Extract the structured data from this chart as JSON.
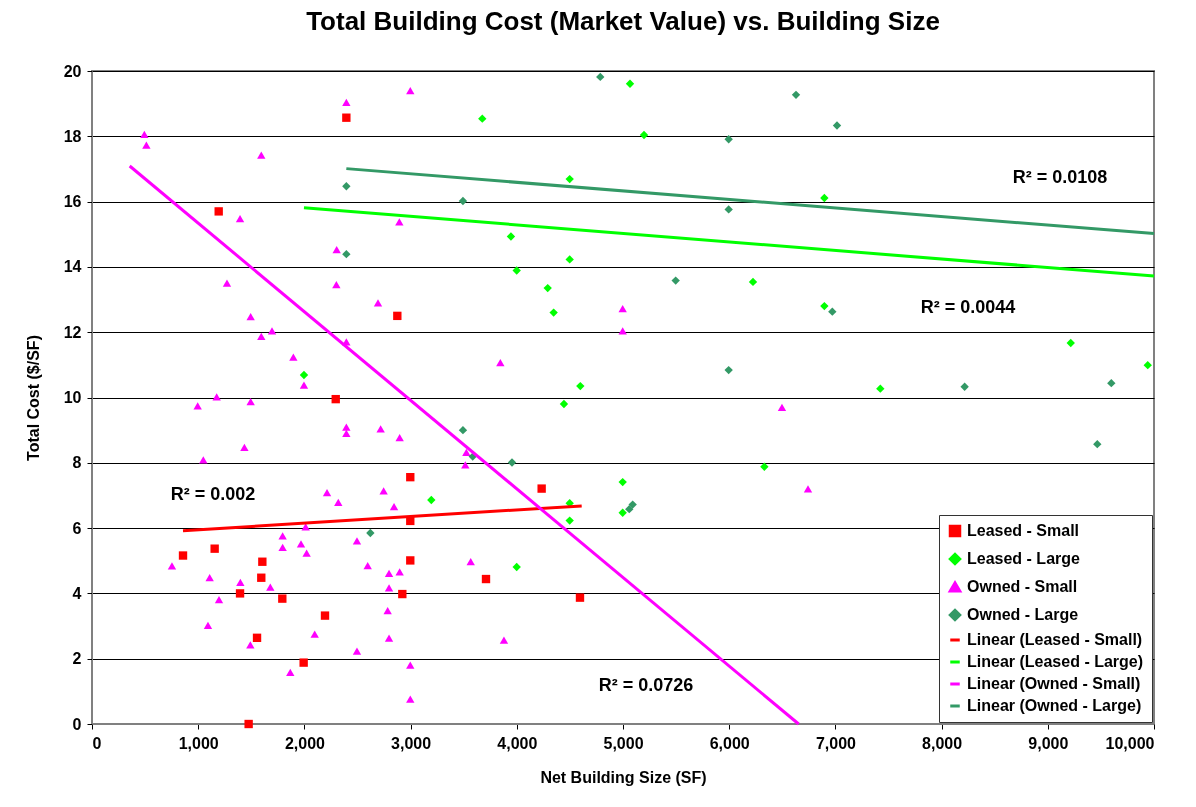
{
  "chart_data": {
    "type": "scatter",
    "title": "Total Building Cost (Market Value) vs. Building Size",
    "xlabel": "Net Building Size (SF)",
    "ylabel": "Total Cost ($/SF)",
    "xlim": [
      0,
      10000
    ],
    "ylim": [
      0,
      20
    ],
    "xticks": [
      0,
      {
        "value": 1000,
        "label": "1,000"
      },
      {
        "value": 2000,
        "label": "2,000"
      },
      {
        "value": 3000,
        "label": "3,000"
      },
      {
        "value": 4000,
        "label": "4,000"
      },
      {
        "value": 5000,
        "label": "5,000"
      },
      {
        "value": 6000,
        "label": "6,000"
      },
      {
        "value": 7000,
        "label": "7,000"
      },
      {
        "value": 8000,
        "label": "8,000"
      },
      {
        "value": 9000,
        "label": "9,000"
      },
      {
        "value": 10000,
        "label": "10,000"
      }
    ],
    "yticks": [
      0,
      2,
      4,
      6,
      8,
      10,
      12,
      14,
      16,
      18,
      20
    ],
    "grid": "y",
    "legend": "bottom right",
    "series": [
      {
        "name": "Leased - Small",
        "marker": "square",
        "color": "#ff0000",
        "x": [
          2395,
          1193,
          2875,
          2295,
          2997,
          4234,
          2997,
          857,
          1155,
          1604,
          2997,
          1594,
          1394,
          1792,
          2922,
          2194,
          1554,
          1993,
          1475,
          3710,
          4595
        ],
        "values": [
          18.57,
          15.7,
          12.5,
          9.95,
          7.56,
          7.21,
          6.22,
          5.16,
          5.37,
          4.97,
          5.01,
          4.48,
          4.0,
          3.84,
          3.98,
          3.32,
          2.64,
          1.88,
          0.0,
          4.44,
          3.87
        ]
      },
      {
        "name": "Leased - Large",
        "marker": "diamond",
        "color": "#00ff00",
        "x": [
          5066,
          3675,
          5198,
          4498,
          3945,
          4498,
          3999,
          4291,
          6224,
          4347,
          4598,
          1996,
          3195,
          4444,
          4997,
          4498,
          4997,
          4498,
          3999,
          6331,
          6896,
          6896,
          9216,
          9941,
          7423
        ],
        "values": [
          19.61,
          18.54,
          18.04,
          16.69,
          14.93,
          14.23,
          13.89,
          13.35,
          13.54,
          12.6,
          10.35,
          10.69,
          6.86,
          9.8,
          7.41,
          6.76,
          6.47,
          6.23,
          4.81,
          7.88,
          16.11,
          12.8,
          11.67,
          10.99,
          10.27
        ]
      },
      {
        "name": "Owned - Small",
        "marker": "triangle",
        "color": "#ff00ff",
        "x": [
          2997,
          2395,
          493,
          512,
          1594,
          1394,
          2894,
          2304,
          1271,
          2301,
          2693,
          1494,
          1695,
          1594,
          2395,
          1896,
          1996,
          1174,
          995,
          1494,
          2395,
          2395,
          2718,
          2897,
          1435,
          1048,
          2213,
          2319,
          2746,
          2844,
          2012,
          1795,
          1795,
          1968,
          2021,
          2495,
          2596,
          2797,
          2897,
          2797,
          753,
          1108,
          1397,
          1679,
          1196,
          2784,
          1092,
          2097,
          2797,
          1491,
          2495,
          2997,
          1867,
          2997,
          6497,
          3525,
          3515,
          6742,
          3566,
          3879,
          3845,
          4997,
          4997
        ],
        "values": [
          19.4,
          19.04,
          18.06,
          17.73,
          17.42,
          15.48,
          15.38,
          14.53,
          13.5,
          13.46,
          12.9,
          12.48,
          12.04,
          11.87,
          11.7,
          11.24,
          10.38,
          10.02,
          9.74,
          9.87,
          9.09,
          8.9,
          9.04,
          8.77,
          8.47,
          8.09,
          7.09,
          6.79,
          7.14,
          6.66,
          6.04,
          5.76,
          5.41,
          5.52,
          5.23,
          5.61,
          4.85,
          4.61,
          4.66,
          4.17,
          4.84,
          4.48,
          4.34,
          4.19,
          3.81,
          3.47,
          3.02,
          2.75,
          2.63,
          2.42,
          2.23,
          1.8,
          1.58,
          0.76,
          9.7,
          8.32,
          7.94,
          7.2,
          4.97,
          2.57,
          11.07,
          12.72,
          12.04
        ]
      },
      {
        "name": "Owned - Large",
        "marker": "diamond",
        "color": "#339966",
        "x": [
          4786,
          6629,
          5995,
          3493,
          5995,
          5496,
          5995,
          7015,
          6971,
          8217,
          9598,
          9466,
          2395,
          2395,
          2621,
          3493,
          3585,
          3955,
          5091,
          5059
        ],
        "values": [
          19.82,
          19.27,
          17.91,
          16.02,
          15.76,
          13.58,
          10.84,
          18.33,
          12.63,
          10.33,
          10.44,
          8.57,
          16.47,
          14.39,
          5.85,
          9.0,
          8.19,
          8.01,
          6.72,
          6.58
        ]
      },
      {
        "name": "Linear (Leased - Small)",
        "type": "line",
        "color": "#ff0000",
        "x": [
          857,
          4611
        ],
        "values": [
          5.92,
          6.68
        ]
      },
      {
        "name": "Linear (Leased - Large)",
        "type": "line",
        "color": "#00ff00",
        "x": [
          1996,
          10000
        ],
        "values": [
          15.81,
          13.72
        ]
      },
      {
        "name": "Linear (Owned - Small)",
        "type": "line",
        "color": "#ff00ff",
        "x": [
          355,
          6654
        ],
        "values": [
          17.09,
          0
        ]
      },
      {
        "name": "Linear (Owned - Large)",
        "type": "line",
        "color": "#339966",
        "x": [
          2395,
          10000
        ],
        "values": [
          17.01,
          15.02
        ]
      }
    ],
    "annotations": [
      "R² = 0.0108",
      "R² = 0.0044",
      "R² = 0.002",
      "R² = 0.0726"
    ]
  }
}
